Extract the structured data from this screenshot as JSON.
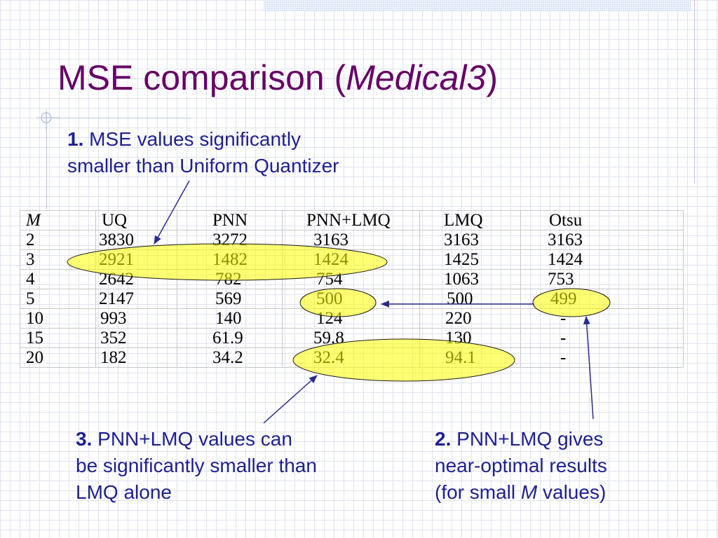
{
  "slide": {
    "title_main": "MSE comparison (",
    "title_italic": "Medical3",
    "title_end": ")"
  },
  "notes": {
    "note1": {
      "number": "1.",
      "line1": "MSE values significantly",
      "line2": "smaller than Uniform Quantizer"
    },
    "note2": {
      "number": "2.",
      "line1": "PNN+LMQ gives",
      "line2": "near-optimal results",
      "line3_pre": "(for small ",
      "line3_italic": "M",
      "line3_post": " values)"
    },
    "note3": {
      "number": "3.",
      "line1": "PNN+LMQ values can",
      "line2": "be significantly smaller than",
      "line3": "LMQ alone"
    }
  },
  "table": {
    "headers": [
      "M",
      "UQ",
      "PNN",
      "PNN+LMQ",
      "LMQ",
      "Otsu"
    ],
    "rows": [
      [
        "2",
        "3830",
        "3272",
        "3163",
        "3163",
        "3163"
      ],
      [
        "3",
        "2921",
        "1482",
        "1424",
        "1425",
        "1424"
      ],
      [
        "4",
        "2642",
        "782",
        "754",
        "1063",
        "753"
      ],
      [
        "5",
        "2147",
        "569",
        "500",
        "500",
        "499"
      ],
      [
        "10",
        "993",
        "140",
        "124",
        "220",
        "-"
      ],
      [
        "15",
        "352",
        "61.9",
        "59.8",
        "130",
        "-"
      ],
      [
        "20",
        "182",
        "34.2",
        "32.4",
        "94.1",
        "-"
      ]
    ]
  },
  "colors": {
    "title": "#660066",
    "note_text": "#1f1f8f",
    "highlight": "#ffff00",
    "arrow": "#2a2a8a"
  }
}
